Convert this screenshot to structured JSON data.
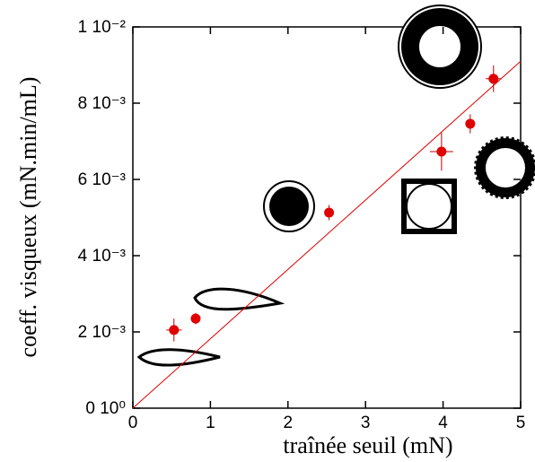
{
  "chart_data": {
    "type": "scatter",
    "xlabel": "traînée seuil (mN)",
    "ylabel": "coeff. visqueux (mN.min/mL)",
    "xlim": [
      0,
      5
    ],
    "xticks": [
      0,
      1,
      2,
      3,
      4,
      5
    ],
    "ylim": [
      0,
      0.01
    ],
    "yticks": [
      {
        "value": 0,
        "label": "0 10⁰"
      },
      {
        "value": 0.002,
        "label": "2 10⁻³"
      },
      {
        "value": 0.004,
        "label": "4 10⁻³"
      },
      {
        "value": 0.006,
        "label": "6 10⁻³"
      },
      {
        "value": 0.008,
        "label": "8 10⁻³"
      },
      {
        "value": 0.01,
        "label": "1 10⁻²"
      }
    ],
    "color": "#e00000",
    "x": [
      0.53,
      0.81,
      2.53,
      3.98,
      4.35,
      4.65
    ],
    "values": [
      0.00205,
      0.00235,
      0.00513,
      0.00673,
      0.00746,
      0.00864
    ],
    "xerr": [
      0.1,
      0.03,
      0.03,
      0.15,
      0.05,
      0.1
    ],
    "yerr": [
      0.0003,
      0.00015,
      0.0002,
      0.0005,
      0.00025,
      0.00035
    ],
    "fit": {
      "x": [
        0,
        5
      ],
      "values": [
        0,
        0.0091
      ],
      "color": "#e00000"
    }
  }
}
